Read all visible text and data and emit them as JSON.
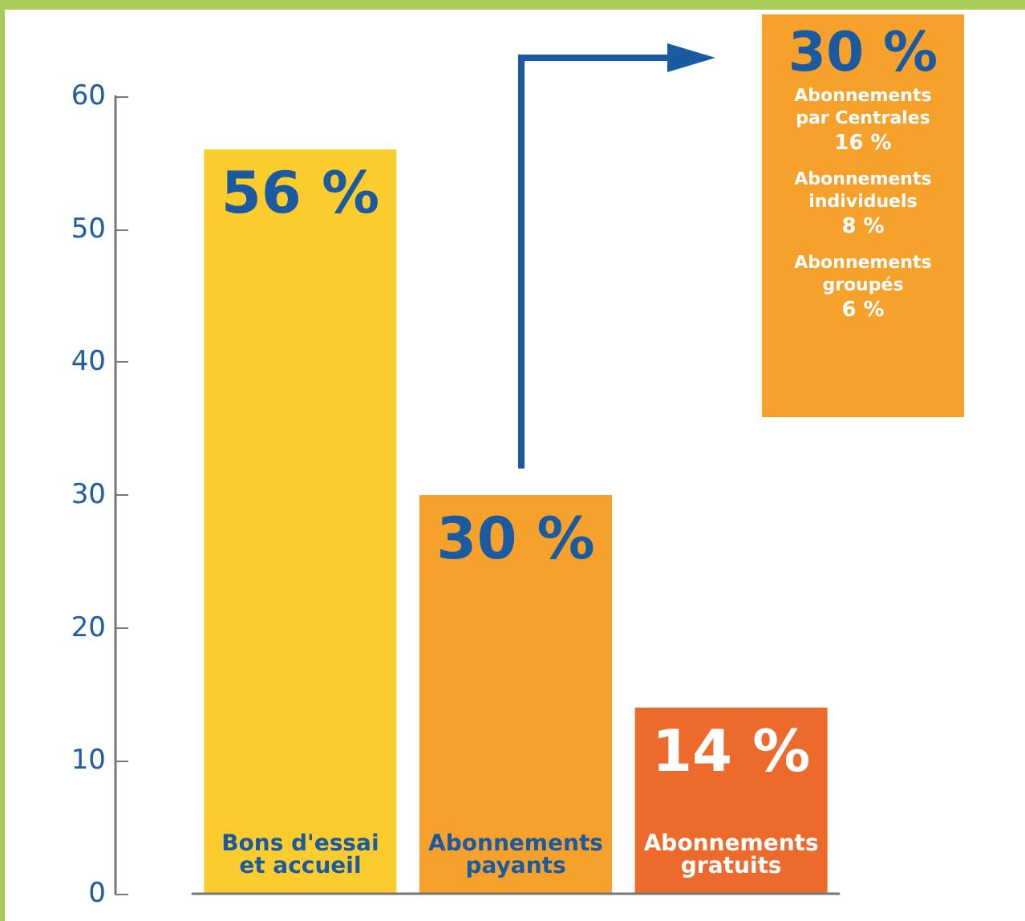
{
  "chart_data": {
    "type": "bar",
    "categories": [
      "Bons d'essai et accueil",
      "Abonnements payants",
      "Abonnements gratuits"
    ],
    "values": [
      56,
      30,
      14
    ],
    "colors": [
      "#fccb2e",
      "#f5a12b",
      "#eb6a2c"
    ],
    "value_labels": [
      "56 %",
      "30 %",
      "14 %"
    ],
    "ylim": [
      0,
      60
    ],
    "yticks": [
      0,
      10,
      20,
      30,
      40,
      50,
      60
    ],
    "grid": false,
    "annotations": [
      "30 %",
      "Abonnements par Centrales",
      "16 %",
      "Abonnements individuels",
      "8 %",
      "Abonnements groupés",
      "6 %"
    ]
  }
}
